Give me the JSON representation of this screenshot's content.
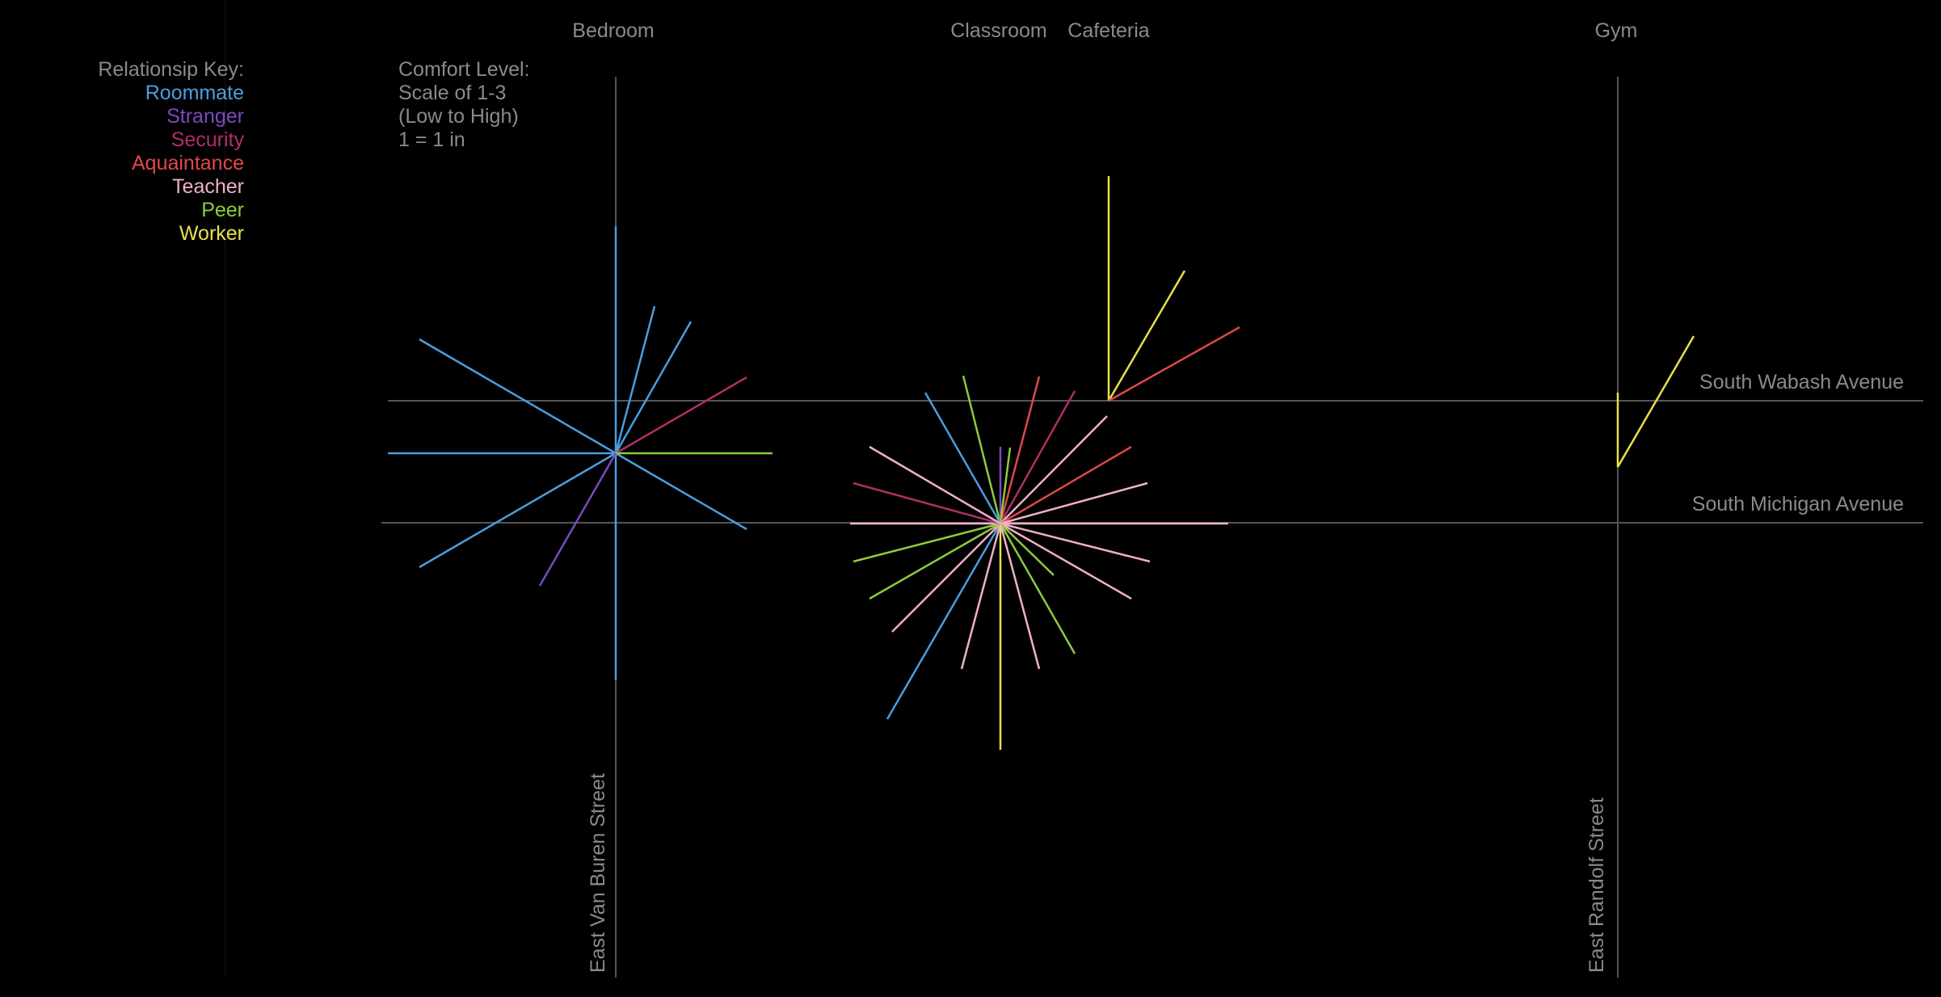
{
  "locations": [
    {
      "name": "Bedroom"
    },
    {
      "name": "Classroom"
    },
    {
      "name": "Cafeteria"
    },
    {
      "name": "Gym"
    }
  ],
  "key": {
    "title": "Relationsip Key:",
    "items": [
      {
        "label": "Roommate",
        "color": "#4a9ee0"
      },
      {
        "label": "Stranger",
        "color": "#7a4ac0"
      },
      {
        "label": "Security",
        "color": "#b02e6a"
      },
      {
        "label": "Aquaintance",
        "color": "#e04848"
      },
      {
        "label": "Teacher",
        "color": "#f0b0c8"
      },
      {
        "label": "Peer",
        "color": "#8ccc3c"
      },
      {
        "label": "Worker",
        "color": "#e8e04a"
      }
    ]
  },
  "comfort": {
    "lines": [
      "Comfort Level:",
      "Scale of 1-3",
      "(Low to High)",
      "1 = 1 in"
    ]
  },
  "streets": {
    "horizontal": [
      "South Wabash Avenue",
      "South Michigan Avenue"
    ],
    "vertical": [
      "East Van Buren Street",
      "East Randolf Street"
    ]
  },
  "colors": {
    "background": "#000000",
    "street": "#555555",
    "text": "#8a8a8a"
  }
}
